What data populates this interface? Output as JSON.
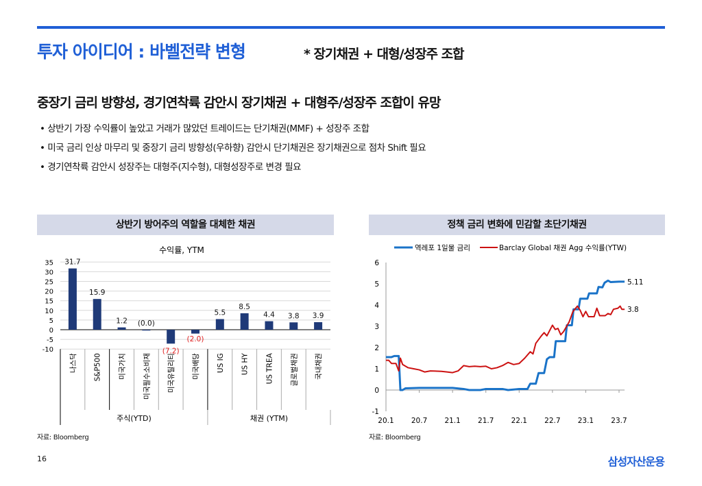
{
  "title": "투자 아이디어 : 바벨전략 변형",
  "subtitle": "* 장기채권 + 대형/성장주 조합",
  "headline": "중장기 금리 방향성, 경기연착륙 감안시 장기채권 + 대형주/성장주 조합이 유망",
  "bullets": [
    "상반기 가장 수익률이 높았고 거래가 많았던 트레이드는 단기채권(MMF) + 성장주 조합",
    "미국 금리 인상 마무리 및 중장기 금리 방향성(우하향) 감안시 단기채권은 장기채권으로 점차 Shift 필요",
    "경기연착륙 감안시 성장주는 대형주(지수형), 대형성장주로 변경 필요"
  ],
  "left_panel": {
    "header": "상반기 방어주의 역할을 대체한 채권",
    "source": "자료: Bloomberg"
  },
  "right_panel": {
    "header": "정책 금리 변화에 민감할 초단기채권",
    "source": "자료: Bloomberg"
  },
  "page_number": "16",
  "logo": "삼성자산운용",
  "chart_data": [
    {
      "type": "bar",
      "title": "수익률, YTM",
      "categories": [
        "나스닥",
        "S&P500",
        "미국가치",
        "미국필수소비재",
        "미국유틸리티",
        "미국배당",
        "US IG",
        "US HY",
        "US TREA",
        "글로벌채권",
        "국내채권"
      ],
      "values": [
        31.7,
        15.9,
        1.2,
        -0.0,
        -7.2,
        -2.0,
        5.5,
        8.5,
        4.4,
        3.8,
        3.9
      ],
      "labels": [
        "31.7",
        "15.9",
        "1.2",
        "(0.0)",
        "(7.2)",
        "(2.0)",
        "5.5",
        "8.5",
        "4.4",
        "3.8",
        "3.9"
      ],
      "groups": [
        {
          "name": "주식(YTD)",
          "count": 6
        },
        {
          "name": "채권 (YTM)",
          "count": 5
        }
      ],
      "yticks": [
        "35",
        "30",
        "25",
        "20",
        "15",
        "10",
        "5",
        "0",
        "-5",
        "-10"
      ],
      "ylim": [
        -10,
        35
      ],
      "bar_color": "#1f3a78",
      "neg_label_color": "#e02020",
      "grid": true
    },
    {
      "type": "line",
      "xticks": [
        "20.1",
        "20.7",
        "21.1",
        "21.7",
        "22.1",
        "22.7",
        "23.1",
        "23.7"
      ],
      "yticks": [
        "6",
        "5",
        "4",
        "3",
        "2",
        "1",
        "0",
        "-1"
      ],
      "ylim": [
        -1,
        6
      ],
      "x_unit": "months since 2020.1",
      "series": [
        {
          "name": "역레포 1일물 금리",
          "color": "#1a73c8",
          "end_label": "5.11",
          "points": [
            [
              0,
              1.55
            ],
            [
              1,
              1.55
            ],
            [
              1.5,
              1.6
            ],
            [
              2.3,
              1.6
            ],
            [
              2.6,
              0
            ],
            [
              3,
              0
            ],
            [
              3.5,
              0.08
            ],
            [
              6,
              0.1
            ],
            [
              9,
              0.1
            ],
            [
              12,
              0.1
            ],
            [
              14,
              0.05
            ],
            [
              15,
              0
            ],
            [
              17,
              0
            ],
            [
              18,
              0.05
            ],
            [
              21,
              0.05
            ],
            [
              22,
              0
            ],
            [
              24,
              0.05
            ],
            [
              25.5,
              0.05
            ],
            [
              26,
              0.3
            ],
            [
              27,
              0.3
            ],
            [
              27.5,
              0.8
            ],
            [
              28.5,
              0.8
            ],
            [
              29,
              1.45
            ],
            [
              29.5,
              1.55
            ],
            [
              30.3,
              1.55
            ],
            [
              30.6,
              2.3
            ],
            [
              32.3,
              2.3
            ],
            [
              32.6,
              3.05
            ],
            [
              33.5,
              3.05
            ],
            [
              33.8,
              3.8
            ],
            [
              34.7,
              3.8
            ],
            [
              35,
              4.3
            ],
            [
              36.3,
              4.3
            ],
            [
              36.6,
              4.55
            ],
            [
              38,
              4.55
            ],
            [
              38.3,
              4.85
            ],
            [
              39,
              4.83
            ],
            [
              39.4,
              5.05
            ],
            [
              40,
              5.15
            ],
            [
              40.5,
              5.08
            ],
            [
              42,
              5.1
            ],
            [
              43,
              5.1
            ]
          ]
        },
        {
          "name": "Barclay Global 채권 Agg 수익률(YTW)",
          "color": "#cc1111",
          "end_label": "3.8",
          "points": [
            [
              0,
              1.4
            ],
            [
              0.5,
              1.4
            ],
            [
              1,
              1.25
            ],
            [
              1.8,
              1.25
            ],
            [
              2.3,
              0.9
            ],
            [
              2.6,
              1.5
            ],
            [
              3,
              1.2
            ],
            [
              4,
              1.05
            ],
            [
              5,
              1.0
            ],
            [
              6,
              0.95
            ],
            [
              7,
              0.85
            ],
            [
              8,
              0.9
            ],
            [
              10,
              0.88
            ],
            [
              11,
              0.85
            ],
            [
              12,
              0.82
            ],
            [
              13,
              0.9
            ],
            [
              14,
              1.15
            ],
            [
              15,
              1.1
            ],
            [
              16,
              1.12
            ],
            [
              17,
              1.1
            ],
            [
              18,
              1.12
            ],
            [
              19,
              1.0
            ],
            [
              20,
              1.05
            ],
            [
              21,
              1.15
            ],
            [
              22,
              1.3
            ],
            [
              23,
              1.2
            ],
            [
              24,
              1.25
            ],
            [
              25,
              1.5
            ],
            [
              26,
              1.8
            ],
            [
              26.5,
              1.7
            ],
            [
              27,
              2.2
            ],
            [
              28,
              2.55
            ],
            [
              28.5,
              2.7
            ],
            [
              29,
              2.55
            ],
            [
              30,
              3.05
            ],
            [
              30.5,
              2.85
            ],
            [
              31,
              2.9
            ],
            [
              31.5,
              2.6
            ],
            [
              32,
              2.75
            ],
            [
              33,
              3.2
            ],
            [
              33.7,
              3.7
            ],
            [
              34.5,
              3.95
            ],
            [
              35,
              3.75
            ],
            [
              35.5,
              3.45
            ],
            [
              36,
              3.7
            ],
            [
              36.5,
              3.45
            ],
            [
              37.5,
              3.45
            ],
            [
              38,
              3.85
            ],
            [
              38.5,
              3.5
            ],
            [
              39.5,
              3.5
            ],
            [
              40,
              3.6
            ],
            [
              40.5,
              3.55
            ],
            [
              41,
              3.8
            ],
            [
              41.8,
              3.85
            ],
            [
              42.2,
              3.95
            ],
            [
              42.5,
              3.8
            ],
            [
              43,
              3.8
            ]
          ]
        }
      ]
    }
  ]
}
